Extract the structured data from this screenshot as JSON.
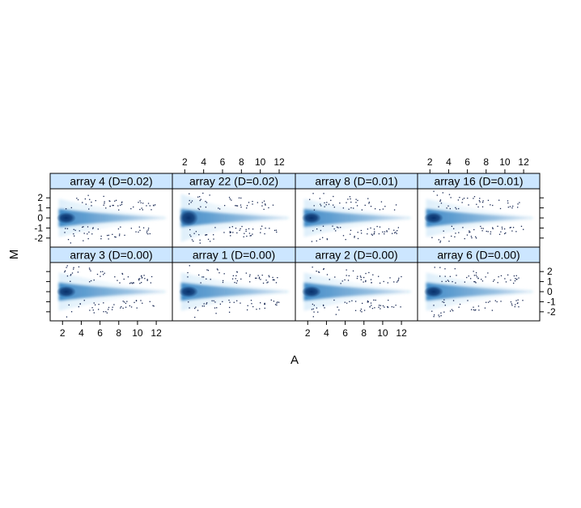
{
  "chart_data": {
    "type": "scatter",
    "title": "",
    "xlabel": "A",
    "ylabel": "M",
    "xlim": [
      1.2,
      13.2
    ],
    "ylim": [
      -2.9,
      2.9
    ],
    "x_ticks": [
      2,
      4,
      6,
      8,
      10,
      12
    ],
    "y_ticks": [
      -2,
      -1,
      0,
      1,
      2
    ],
    "layout": {
      "rows": 2,
      "columns": 4
    },
    "panels": [
      {
        "label": "array 4 (D=0.02)",
        "row": 0,
        "col": 0
      },
      {
        "label": "array 22 (D=0.02)",
        "row": 0,
        "col": 1
      },
      {
        "label": "array 8 (D=0.01)",
        "row": 0,
        "col": 2
      },
      {
        "label": "array 16 (D=0.01)",
        "row": 0,
        "col": 3
      },
      {
        "label": "array 3 (D=0.00)",
        "row": 1,
        "col": 0
      },
      {
        "label": "array 1 (D=0.00)",
        "row": 1,
        "col": 1
      },
      {
        "label": "array 2 (D=0.00)",
        "row": 1,
        "col": 2
      },
      {
        "label": "array 6 (D=0.00)",
        "row": 1,
        "col": 3
      }
    ],
    "colors": {
      "density_dark": "#08306b",
      "density_mid": "#2f7fc1",
      "density_light": "#dceefa",
      "strip": "#cce6ff",
      "points": "#1a2a55"
    }
  }
}
